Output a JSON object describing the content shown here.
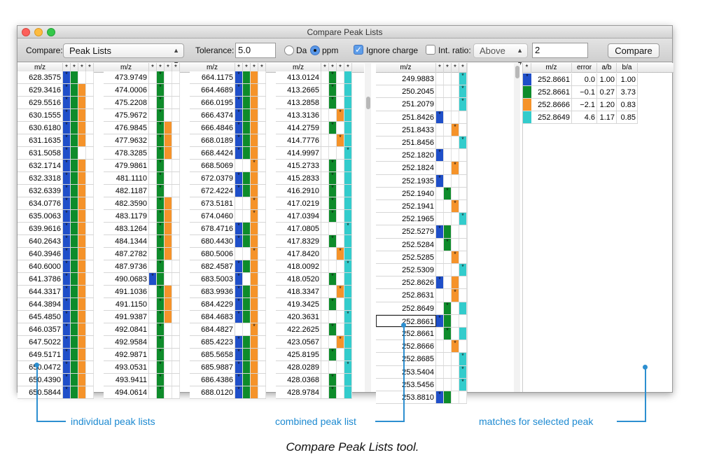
{
  "colors": {
    "blue": "#1f4fc9",
    "green": "#0e8c2b",
    "orange": "#f5932a",
    "cyan": "#33cccc",
    "link": "#1d8ad1"
  },
  "window": {
    "title": "Compare Peak Lists"
  },
  "toolbar": {
    "compare_label": "Compare:",
    "compare_value": "Peak Lists",
    "tolerance_label": "Tolerance:",
    "tolerance_value": "5.0",
    "da_label": "Da",
    "ppm_label": "ppm",
    "ignore_charge_label": "Ignore charge",
    "int_ratio_label": "Int. ratio:",
    "int_ratio_mode": "Above",
    "int_ratio_value": "2",
    "compare_button": "Compare"
  },
  "lists": [
    {
      "header": "m/z",
      "rows": [
        [
          "628.3575",
          "1100"
        ],
        [
          "629.3416",
          "1110"
        ],
        [
          "629.5516",
          "1110"
        ],
        [
          "630.1555",
          "1110"
        ],
        [
          "630.6180",
          "1110"
        ],
        [
          "631.1635",
          "1110"
        ],
        [
          "631.5058",
          "1100"
        ],
        [
          "632.1714",
          "1110"
        ],
        [
          "632.3318",
          "1110"
        ],
        [
          "632.6339",
          "1110"
        ],
        [
          "634.0776",
          "1110"
        ],
        [
          "635.0063",
          "1110"
        ],
        [
          "639.9616",
          "1110"
        ],
        [
          "640.2643",
          "1110"
        ],
        [
          "640.3946",
          "1110"
        ],
        [
          "640.6000",
          "1110"
        ],
        [
          "641.3786",
          "1110"
        ],
        [
          "644.3317",
          "1110"
        ],
        [
          "644.3894",
          "1110"
        ],
        [
          "645.4850",
          "1110"
        ],
        [
          "646.0357",
          "1110"
        ],
        [
          "647.5022",
          "1110"
        ],
        [
          "649.5171",
          "1110"
        ],
        [
          "650.0472",
          "1110"
        ],
        [
          "650.4390",
          "1110"
        ],
        [
          "650.5844",
          "1110"
        ]
      ]
    },
    {
      "header": "m/z",
      "rows": [
        [
          "473.9749",
          "0100"
        ],
        [
          "474.0006",
          "0100"
        ],
        [
          "475.2208",
          "0100"
        ],
        [
          "475.9672",
          "0100"
        ],
        [
          "476.9845",
          "0110"
        ],
        [
          "477.9632",
          "0110"
        ],
        [
          "478.3285",
          "0110"
        ],
        [
          "479.9861",
          "0100"
        ],
        [
          "481.1110",
          "0100"
        ],
        [
          "482.1187",
          "0100"
        ],
        [
          "482.3590",
          "0110"
        ],
        [
          "483.1179",
          "0110"
        ],
        [
          "483.1264",
          "0110"
        ],
        [
          "484.1344",
          "0110"
        ],
        [
          "487.2782",
          "0110"
        ],
        [
          "487.9736",
          "0100"
        ],
        [
          "490.0683",
          "1100"
        ],
        [
          "491.1036",
          "0110"
        ],
        [
          "491.1150",
          "0110"
        ],
        [
          "491.9387",
          "0110"
        ],
        [
          "492.0841",
          "0100"
        ],
        [
          "492.9584",
          "0100"
        ],
        [
          "492.9871",
          "0100"
        ],
        [
          "493.0531",
          "0100"
        ],
        [
          "493.9411",
          "0100"
        ],
        [
          "494.0614",
          "0100"
        ]
      ]
    },
    {
      "header": "m/z",
      "rows": [
        [
          "664.1175",
          "1110"
        ],
        [
          "664.4689",
          "1110"
        ],
        [
          "666.0195",
          "1110"
        ],
        [
          "666.4374",
          "1110"
        ],
        [
          "666.4846",
          "1110"
        ],
        [
          "668.0189",
          "1110"
        ],
        [
          "668.4424",
          "1110"
        ],
        [
          "668.5069",
          "0010"
        ],
        [
          "672.0379",
          "1110"
        ],
        [
          "672.4224",
          "1110"
        ],
        [
          "673.5181",
          "0010"
        ],
        [
          "674.0460",
          "0010"
        ],
        [
          "678.4716",
          "1110"
        ],
        [
          "680.4430",
          "1110"
        ],
        [
          "680.5006",
          "0010"
        ],
        [
          "682.4587",
          "1110"
        ],
        [
          "683.5003",
          "1010"
        ],
        [
          "683.9936",
          "1110"
        ],
        [
          "684.4229",
          "1110"
        ],
        [
          "684.4683",
          "1110"
        ],
        [
          "684.4827",
          "0010"
        ],
        [
          "685.4223",
          "1110"
        ],
        [
          "685.5658",
          "1110"
        ],
        [
          "685.9887",
          "1110"
        ],
        [
          "686.4386",
          "1110"
        ],
        [
          "688.0120",
          "1110"
        ]
      ]
    },
    {
      "header": "m/z",
      "rows": [
        [
          "413.0124",
          "0101"
        ],
        [
          "413.2665",
          "0101"
        ],
        [
          "413.2858",
          "0101"
        ],
        [
          "413.3136",
          "0011"
        ],
        [
          "414.2759",
          "0101"
        ],
        [
          "414.7776",
          "0011"
        ],
        [
          "414.9997",
          "0001"
        ],
        [
          "415.2733",
          "0101"
        ],
        [
          "415.2833",
          "0101"
        ],
        [
          "416.2910",
          "0101"
        ],
        [
          "417.0219",
          "0101"
        ],
        [
          "417.0394",
          "0101"
        ],
        [
          "417.0805",
          "0001"
        ],
        [
          "417.8329",
          "0101"
        ],
        [
          "417.8420",
          "0011"
        ],
        [
          "418.0092",
          "0001"
        ],
        [
          "418.0520",
          "0101"
        ],
        [
          "418.3347",
          "0011"
        ],
        [
          "419.3425",
          "0101"
        ],
        [
          "420.3631",
          "0001"
        ],
        [
          "422.2625",
          "0101"
        ],
        [
          "423.0567",
          "0011"
        ],
        [
          "425.8195",
          "0101"
        ],
        [
          "428.0289",
          "0001"
        ],
        [
          "428.0368",
          "0101"
        ],
        [
          "428.9784",
          "0101"
        ]
      ]
    }
  ],
  "combined": {
    "header": "m/z",
    "rows": [
      [
        "249.9883",
        "0001"
      ],
      [
        "250.2045",
        "0001"
      ],
      [
        "251.2079",
        "0001"
      ],
      [
        "251.8426",
        "1000"
      ],
      [
        "251.8433",
        "0010"
      ],
      [
        "251.8456",
        "0001"
      ],
      [
        "252.1820",
        "1000"
      ],
      [
        "252.1824",
        "0010"
      ],
      [
        "252.1935",
        "1000"
      ],
      [
        "252.1940",
        "0100"
      ],
      [
        "252.1941",
        "0010"
      ],
      [
        "252.1965",
        "0001"
      ],
      [
        "252.5279",
        "1100"
      ],
      [
        "252.5284",
        "0100"
      ],
      [
        "252.5285",
        "0010"
      ],
      [
        "252.5309",
        "0001"
      ],
      [
        "252.8626",
        "1010"
      ],
      [
        "252.8631",
        "0010"
      ],
      [
        "252.8649",
        "0101"
      ],
      [
        "252.8661",
        "1100"
      ],
      [
        "252.8661",
        "0101"
      ],
      [
        "252.8666",
        "0010"
      ],
      [
        "252.8685",
        "0001"
      ],
      [
        "253.5404",
        "0001"
      ],
      [
        "253.5456",
        "0001"
      ],
      [
        "253.8810",
        "1100"
      ]
    ]
  },
  "matches": {
    "headers": [
      "m/z",
      "error",
      "a/b",
      "b/a"
    ],
    "rows": [
      {
        "color": "blue",
        "mz": "252.8661",
        "error": "0.0",
        "ab": "1.00",
        "ba": "1.00"
      },
      {
        "color": "green",
        "mz": "252.8661",
        "error": "−0.1",
        "ab": "0.27",
        "ba": "3.73"
      },
      {
        "color": "orange",
        "mz": "252.8666",
        "error": "−2.1",
        "ab": "1.20",
        "ba": "0.83"
      },
      {
        "color": "cyan",
        "mz": "252.8649",
        "error": "4.6",
        "ab": "1.17",
        "ba": "0.85"
      }
    ]
  },
  "callouts": {
    "individual": "individual peak lists",
    "combined": "combined peak list",
    "matches": "matches for selected peak"
  },
  "caption": "Compare Peak Lists tool."
}
